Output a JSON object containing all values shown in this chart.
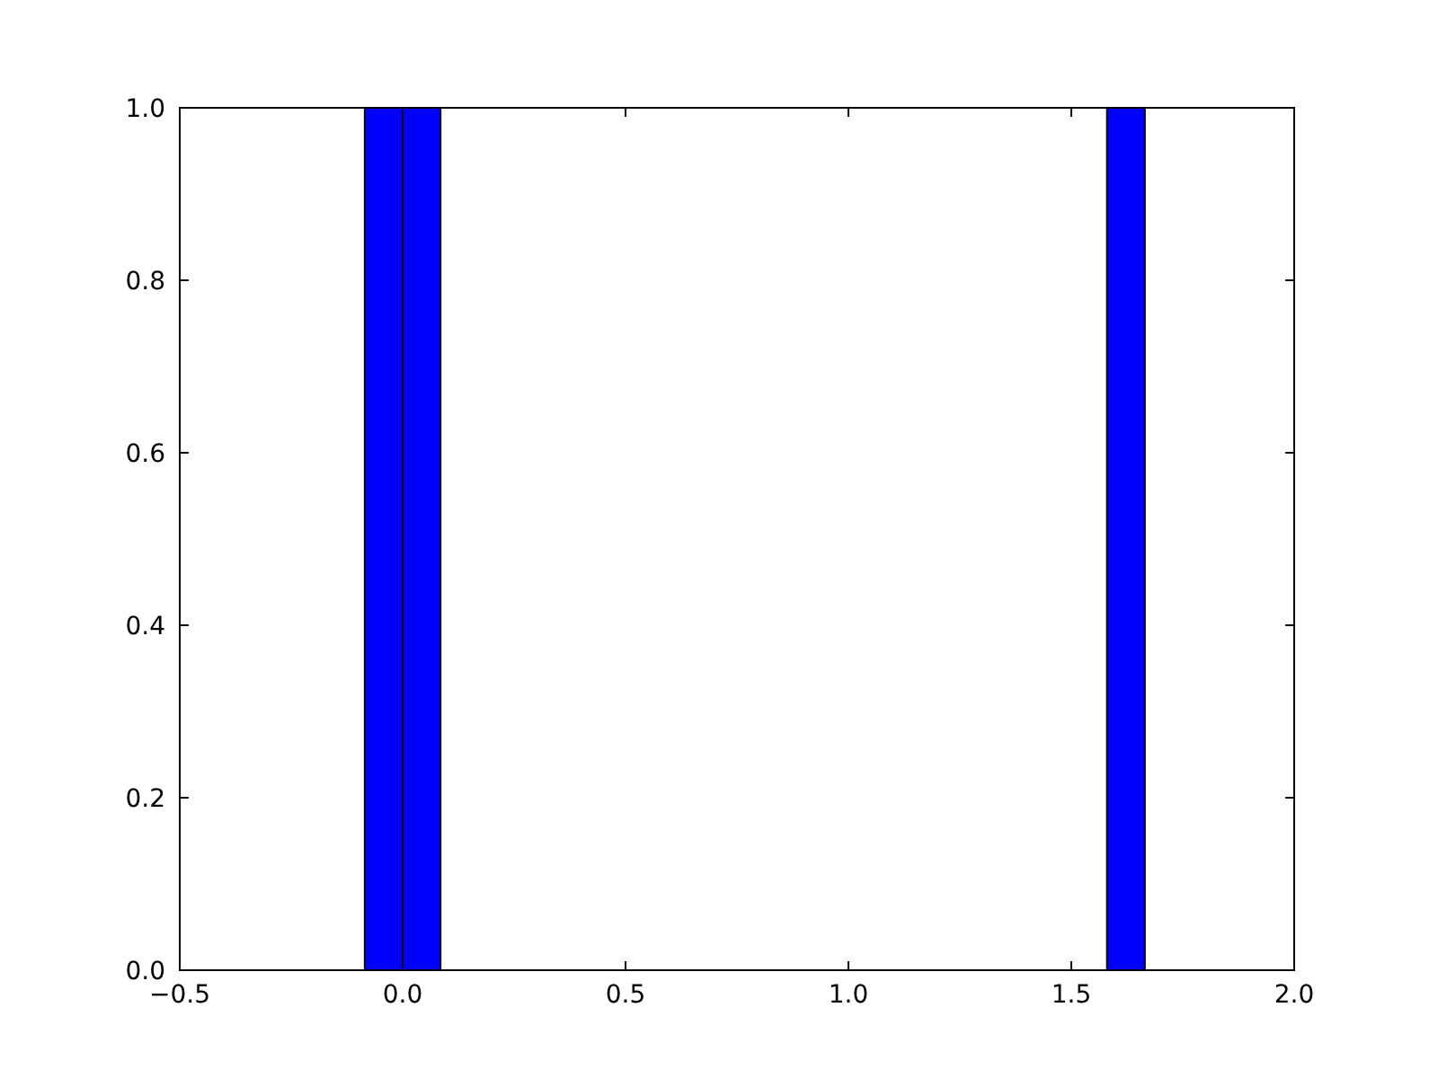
{
  "chart_data": {
    "type": "histogram",
    "bins": [
      -0.085,
      0,
      0.085,
      1.58,
      1.665
    ],
    "values": [
      1,
      1,
      0,
      1
    ],
    "color": "#0000ff",
    "xlim": [
      -0.5,
      2.0
    ],
    "xticks": [
      {
        "value": -0.5,
        "label": "−0.5"
      },
      {
        "value": 0,
        "label": "0.0"
      },
      {
        "value": 0.5,
        "label": "0.5"
      },
      {
        "value": 1,
        "label": "1.0"
      },
      {
        "value": 1.5,
        "label": "1.5"
      },
      {
        "value": 2,
        "label": "2.0"
      }
    ],
    "ylim": [
      0,
      1
    ],
    "yticks": [
      {
        "value": 0,
        "label": "0.0"
      },
      {
        "value": 0.2,
        "label": "0.2"
      },
      {
        "value": 0.4,
        "label": "0.4"
      },
      {
        "value": 0.6,
        "label": "0.6"
      },
      {
        "value": 0.8,
        "label": "0.8"
      },
      {
        "value": 1,
        "label": "1.0"
      }
    ]
  }
}
